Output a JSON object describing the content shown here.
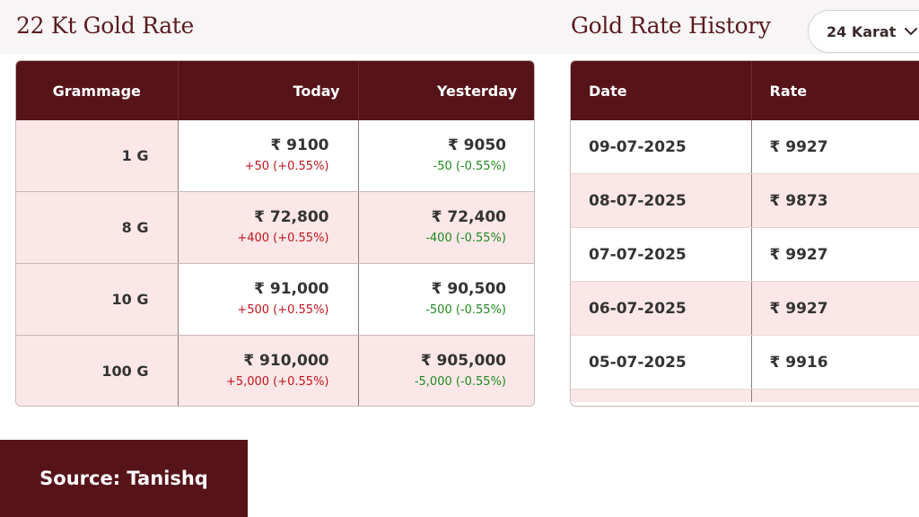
{
  "left_title": "22 Kt Gold Rate",
  "right_title": "Gold Rate History",
  "karat_select": {
    "value": "24 Karat",
    "icon": "chevron-down-icon"
  },
  "rate_table": {
    "headers": [
      "Grammage",
      "Today",
      "Yesterday"
    ],
    "rows": [
      {
        "grammage": "1 G",
        "today": "₹ 9100",
        "today_change": "+50 (+0.55%)",
        "yesterday": "₹ 9050",
        "yesterday_change": "-50 (-0.55%)"
      },
      {
        "grammage": "8 G",
        "today": "₹ 72,800",
        "today_change": "+400 (+0.55%)",
        "yesterday": "₹ 72,400",
        "yesterday_change": "-400 (-0.55%)"
      },
      {
        "grammage": "10 G",
        "today": "₹ 91,000",
        "today_change": "+500 (+0.55%)",
        "yesterday": "₹ 90,500",
        "yesterday_change": "-500 (-0.55%)"
      },
      {
        "grammage": "100 G",
        "today": "₹ 910,000",
        "today_change": "+5,000 (+0.55%)",
        "yesterday": "₹ 905,000",
        "yesterday_change": "-5,000 (-0.55%)"
      }
    ]
  },
  "history_table": {
    "headers": [
      "Date",
      "Rate"
    ],
    "rows": [
      {
        "date": "09-07-2025",
        "rate": "₹ 9927"
      },
      {
        "date": "08-07-2025",
        "rate": "₹ 9873"
      },
      {
        "date": "07-07-2025",
        "rate": "₹ 9927"
      },
      {
        "date": "06-07-2025",
        "rate": "₹ 9927"
      },
      {
        "date": "05-07-2025",
        "rate": "₹ 9916"
      }
    ]
  },
  "source_label": "Source: Tanishq",
  "colors": {
    "header_bg": "#561419",
    "title": "#5b1a1e",
    "row_tint": "#fbe7e8",
    "increase": "#c0151d",
    "decrease": "#1f8a1f"
  }
}
